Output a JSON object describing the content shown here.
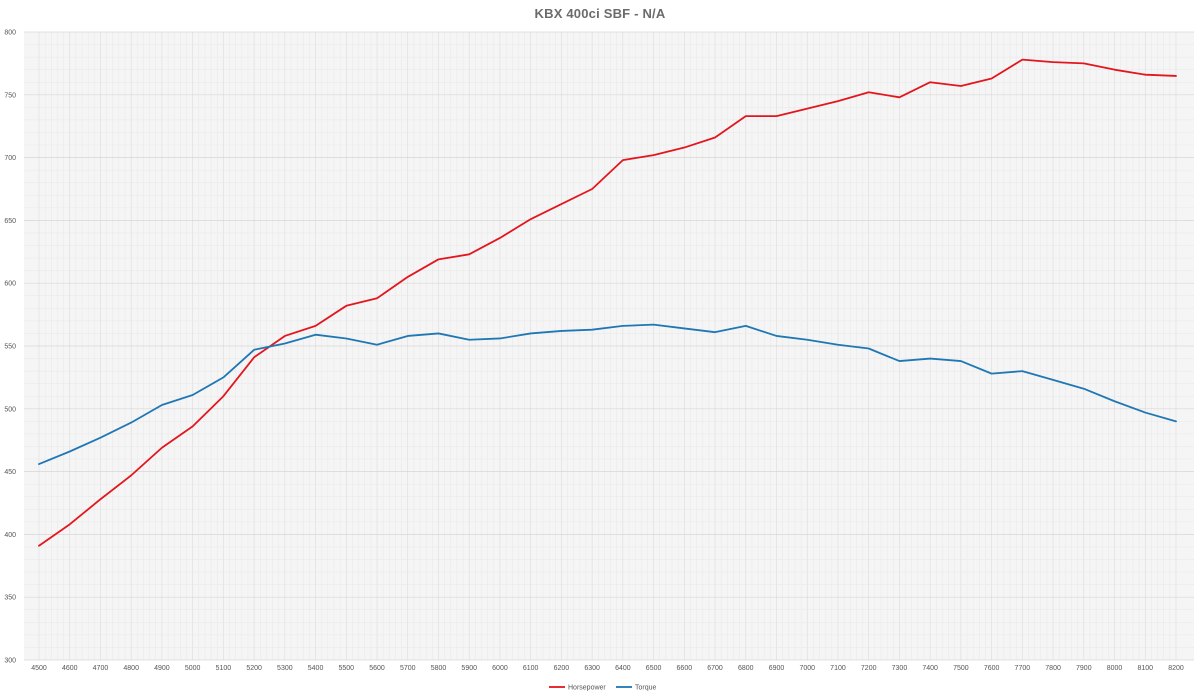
{
  "chart_data": {
    "type": "line",
    "title": "KBX 400ci SBF - N/A",
    "xlabel": "",
    "ylabel": "",
    "x": [
      4500,
      4600,
      4700,
      4800,
      4900,
      5000,
      5100,
      5200,
      5300,
      5400,
      5500,
      5600,
      5700,
      5800,
      5900,
      6000,
      6100,
      6200,
      6300,
      6400,
      6500,
      6600,
      6700,
      6800,
      6900,
      7000,
      7100,
      7200,
      7300,
      7400,
      7500,
      7600,
      7700,
      7800,
      7900,
      8000,
      8100,
      8200
    ],
    "ylim": [
      300,
      800
    ],
    "yticks": [
      300,
      350,
      400,
      450,
      500,
      550,
      600,
      650,
      700,
      750,
      800
    ],
    "grid": true,
    "legend_position": "bottom-center",
    "series": [
      {
        "name": "Horsepower",
        "color": "#e3161e",
        "values": [
          391,
          408,
          428,
          447,
          469,
          486,
          510,
          541,
          558,
          566,
          582,
          588,
          605,
          619,
          623,
          636,
          651,
          663,
          675,
          698,
          702,
          708,
          716,
          733,
          733,
          739,
          745,
          752,
          748,
          760,
          757,
          763,
          778,
          776,
          775,
          770,
          766,
          765
        ]
      },
      {
        "name": "Torque",
        "color": "#1f77b4",
        "values": [
          456,
          466,
          477,
          489,
          503,
          511,
          525,
          547,
          552,
          559,
          556,
          551,
          558,
          560,
          555,
          556,
          560,
          562,
          563,
          566,
          567,
          564,
          561,
          566,
          558,
          555,
          551,
          548,
          538,
          540,
          538,
          528,
          530,
          523,
          516,
          506,
          497,
          490
        ]
      }
    ]
  }
}
